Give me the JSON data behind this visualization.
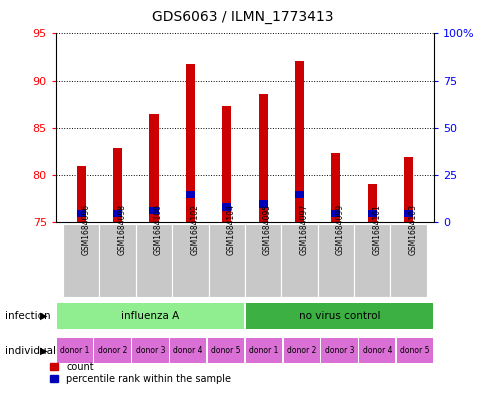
{
  "title": "GDS6063 / ILMN_1773413",
  "samples": [
    "GSM1684096",
    "GSM1684098",
    "GSM1684100",
    "GSM1684102",
    "GSM1684104",
    "GSM1684095",
    "GSM1684097",
    "GSM1684099",
    "GSM1684101",
    "GSM1684103"
  ],
  "red_values": [
    80.9,
    82.8,
    86.5,
    91.8,
    87.3,
    88.6,
    92.1,
    82.3,
    79.0,
    81.9
  ],
  "blue_values": [
    75.5,
    75.5,
    75.8,
    77.5,
    76.2,
    76.5,
    77.5,
    75.5,
    75.5,
    75.5
  ],
  "blue_heights": [
    0.8,
    0.8,
    0.8,
    0.8,
    0.8,
    0.8,
    0.8,
    0.8,
    0.8,
    0.8
  ],
  "ylim_left": [
    75,
    95
  ],
  "ylim_right": [
    0,
    100
  ],
  "yticks_left": [
    75,
    80,
    85,
    90,
    95
  ],
  "yticks_right": [
    0,
    25,
    50,
    75,
    100
  ],
  "yticklabels_right": [
    "0",
    "25",
    "50",
    "75",
    "100%"
  ],
  "infection_groups": [
    {
      "label": "influenza A",
      "start": 0,
      "end": 5,
      "color": "#90EE90"
    },
    {
      "label": "no virus control",
      "start": 5,
      "end": 10,
      "color": "#3CB043"
    }
  ],
  "individual_labels": [
    "donor 1",
    "donor 2",
    "donor 3",
    "donor 4",
    "donor 5",
    "donor 1",
    "donor 2",
    "donor 3",
    "donor 4",
    "donor 5"
  ],
  "individual_color": "#DA70D6",
  "bar_bg_color": "#C8C8C8",
  "red_color": "#CC0000",
  "blue_color": "#0000BB",
  "legend_count": "count",
  "legend_percentile": "percentile rank within the sample",
  "infection_label": "infection",
  "individual_label": "individual"
}
